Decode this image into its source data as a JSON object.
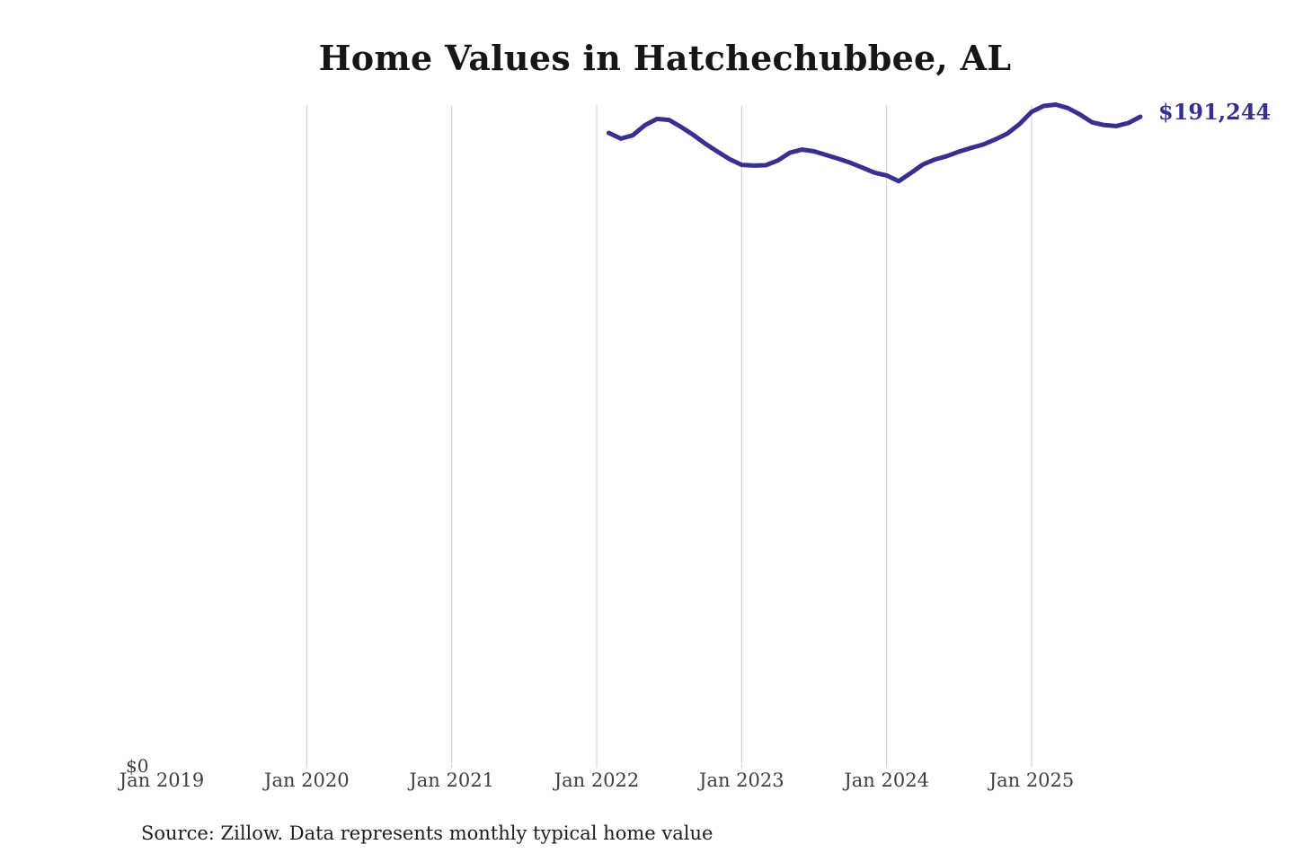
{
  "title": "Home Values in Hatchechubbee, AL",
  "source": {
    "text": "Source: Zillow. Data represents monthly typical home value"
  },
  "colors": {
    "line": "#38308f",
    "grid": "#cccccc",
    "end_label": "#343090",
    "axis_text": "#3f3f3f",
    "title_text": "#161616",
    "source_text": "#1d1d1d"
  },
  "chart_data": {
    "type": "line",
    "title": "Home Values in Hatchechubbee, AL",
    "xlabel": "",
    "ylabel": "",
    "ylim": [
      0,
      195000
    ],
    "grid": "vertical-only",
    "legend": "none",
    "y_zero_label": "$0",
    "end_label": "$191,244",
    "end_value": 191244,
    "x_ticks": [
      {
        "label": "Jan 2019",
        "year": 2019,
        "gridline": false
      },
      {
        "label": "Jan 2020",
        "year": 2020,
        "gridline": true
      },
      {
        "label": "Jan 2021",
        "year": 2021,
        "gridline": true
      },
      {
        "label": "Jan 2022",
        "year": 2022,
        "gridline": true
      },
      {
        "label": "Jan 2023",
        "year": 2023,
        "gridline": true
      },
      {
        "label": "Jan 2024",
        "year": 2024,
        "gridline": true
      },
      {
        "label": "Jan 2025",
        "year": 2025,
        "gridline": true
      }
    ],
    "series": [
      {
        "name": "Monthly typical home value",
        "x": [
          "2022-02",
          "2022-03",
          "2022-04",
          "2022-05",
          "2022-06",
          "2022-07",
          "2022-08",
          "2022-09",
          "2022-10",
          "2022-11",
          "2022-12",
          "2023-01",
          "2023-02",
          "2023-03",
          "2023-04",
          "2023-05",
          "2023-06",
          "2023-07",
          "2023-08",
          "2023-09",
          "2023-10",
          "2023-11",
          "2023-12",
          "2024-01",
          "2024-02",
          "2024-03",
          "2024-04",
          "2024-05",
          "2024-06",
          "2024-07",
          "2024-08",
          "2024-09",
          "2024-10",
          "2024-11",
          "2024-12",
          "2025-01",
          "2025-02",
          "2025-03",
          "2025-04",
          "2025-05",
          "2025-06",
          "2025-07",
          "2025-08",
          "2025-09",
          "2025-10"
        ],
        "values": [
          186500,
          184800,
          185800,
          188800,
          190600,
          190300,
          188200,
          185900,
          183300,
          181000,
          178800,
          177100,
          176900,
          177000,
          178400,
          180700,
          181600,
          181100,
          180000,
          178900,
          177700,
          176300,
          174800,
          174000,
          172300,
          174700,
          177200,
          178700,
          179700,
          181000,
          182100,
          183100,
          184600,
          186300,
          189100,
          192700,
          194400,
          194800,
          193800,
          191900,
          189600,
          188800,
          188500,
          189400,
          191244
        ]
      }
    ]
  }
}
